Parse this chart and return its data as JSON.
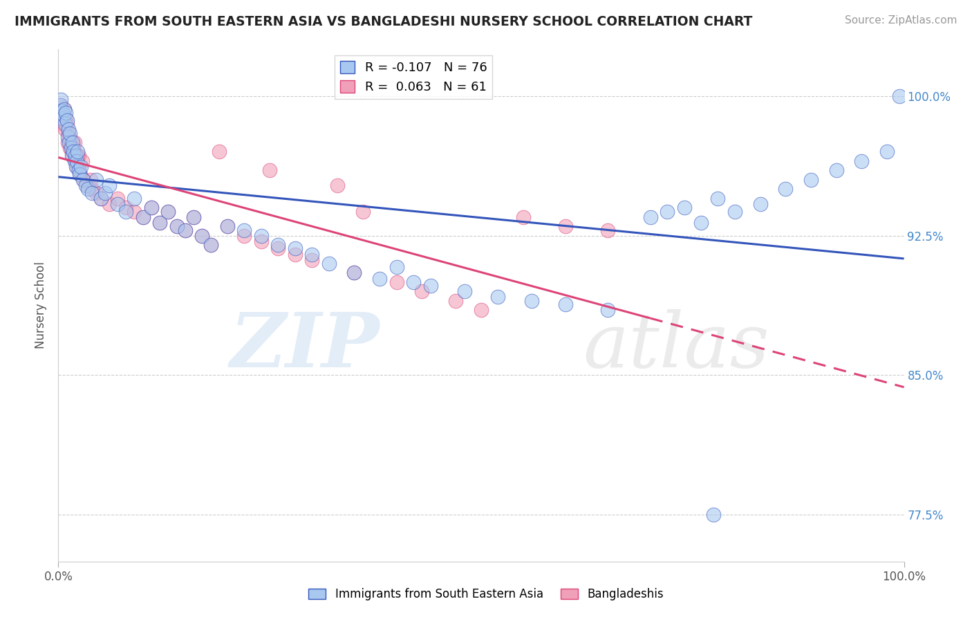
{
  "title": "IMMIGRANTS FROM SOUTH EASTERN ASIA VS BANGLADESHI NURSERY SCHOOL CORRELATION CHART",
  "source": "Source: ZipAtlas.com",
  "ylabel": "Nursery School",
  "legend_label_blue": "Immigrants from South Eastern Asia",
  "legend_label_pink": "Bangladeshis",
  "r_blue": -0.107,
  "n_blue": 76,
  "r_pink": 0.063,
  "n_pink": 61,
  "color_blue": "#A8C8F0",
  "color_pink": "#F0A0B8",
  "color_line_blue": "#3355BB",
  "color_line_pink": "#DD4477",
  "xlim": [
    0.0,
    100.0
  ],
  "ylim": [
    75.0,
    102.5
  ],
  "yticks": [
    77.5,
    85.0,
    92.5,
    100.0
  ],
  "watermark_zip_color": "#C8DCF0",
  "watermark_atlas_color": "#D8D8D8",
  "blue_x": [
    0.2,
    0.3,
    0.4,
    0.5,
    0.6,
    0.7,
    0.8,
    0.9,
    1.0,
    1.1,
    1.2,
    1.3,
    1.4,
    1.5,
    1.6,
    1.7,
    1.8,
    1.9,
    2.0,
    2.1,
    2.2,
    2.3,
    2.4,
    2.5,
    2.7,
    2.9,
    3.2,
    3.5,
    4.0,
    4.5,
    5.0,
    5.5,
    6.0,
    7.0,
    8.0,
    9.0,
    10.0,
    11.0,
    12.0,
    13.0,
    14.0,
    15.0,
    16.0,
    17.0,
    18.0,
    20.0,
    22.0,
    24.0,
    26.0,
    28.0,
    30.0,
    32.0,
    35.0,
    38.0,
    40.0,
    42.0,
    44.0,
    48.0,
    52.0,
    56.0,
    60.0,
    65.0,
    70.0,
    72.0,
    74.0,
    76.0,
    78.0,
    80.0,
    83.0,
    86.0,
    89.0,
    92.0,
    95.0,
    98.0,
    99.5,
    77.5
  ],
  "blue_y": [
    99.5,
    99.8,
    99.2,
    98.8,
    99.0,
    99.3,
    98.5,
    99.1,
    98.7,
    97.8,
    98.2,
    97.5,
    98.0,
    97.2,
    96.8,
    97.5,
    97.0,
    96.5,
    96.8,
    96.2,
    96.5,
    97.0,
    96.0,
    95.8,
    96.2,
    95.5,
    95.2,
    95.0,
    94.8,
    95.5,
    94.5,
    94.8,
    95.2,
    94.2,
    93.8,
    94.5,
    93.5,
    94.0,
    93.2,
    93.8,
    93.0,
    92.8,
    93.5,
    92.5,
    92.0,
    93.0,
    92.8,
    92.5,
    92.0,
    91.8,
    91.5,
    91.0,
    90.5,
    90.2,
    90.8,
    90.0,
    89.8,
    89.5,
    89.2,
    89.0,
    88.8,
    88.5,
    93.5,
    93.8,
    94.0,
    93.2,
    94.5,
    93.8,
    94.2,
    95.0,
    95.5,
    96.0,
    96.5,
    97.0,
    100.0,
    77.5
  ],
  "pink_x": [
    0.2,
    0.3,
    0.4,
    0.5,
    0.6,
    0.7,
    0.8,
    0.9,
    1.0,
    1.1,
    1.2,
    1.3,
    1.4,
    1.5,
    1.6,
    1.7,
    1.8,
    2.0,
    2.2,
    2.4,
    2.6,
    2.8,
    3.0,
    3.5,
    4.0,
    4.5,
    5.0,
    6.0,
    7.0,
    8.0,
    9.0,
    10.0,
    11.0,
    12.0,
    13.0,
    14.0,
    15.0,
    16.0,
    17.0,
    18.0,
    20.0,
    22.0,
    24.0,
    26.0,
    28.0,
    30.0,
    33.0,
    36.0,
    40.0,
    43.0,
    47.0,
    50.0,
    55.0,
    60.0,
    65.0,
    35.0,
    25.0,
    19.0,
    3.8,
    2.3,
    1.9
  ],
  "pink_y": [
    99.2,
    99.5,
    98.8,
    98.5,
    99.0,
    99.3,
    98.2,
    98.8,
    98.5,
    97.5,
    98.0,
    97.8,
    97.2,
    97.5,
    97.0,
    96.8,
    97.2,
    96.5,
    96.2,
    96.8,
    95.8,
    96.5,
    95.5,
    95.2,
    95.0,
    94.8,
    94.5,
    94.2,
    94.5,
    94.0,
    93.8,
    93.5,
    94.0,
    93.2,
    93.8,
    93.0,
    92.8,
    93.5,
    92.5,
    92.0,
    93.0,
    92.5,
    92.2,
    91.8,
    91.5,
    91.2,
    95.2,
    93.8,
    90.0,
    89.5,
    89.0,
    88.5,
    93.5,
    93.0,
    92.8,
    90.5,
    96.0,
    97.0,
    95.5,
    96.8,
    97.5
  ]
}
